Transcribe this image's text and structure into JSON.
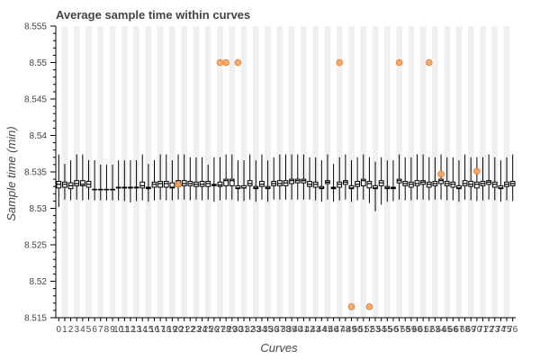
{
  "chart_data": {
    "type": "box",
    "title": "Average sample time within curves",
    "xlabel": "Curves",
    "ylabel": "Sample time (min)",
    "ylim": [
      8.515,
      8.555
    ],
    "yticks": [
      "8.515",
      "8.52",
      "8.525",
      "8.53",
      "8.535",
      "8.54",
      "8.545",
      "8.55",
      "8.555"
    ],
    "xtick_labels": [
      "0",
      "1",
      "2",
      "3",
      "4",
      "5",
      "6",
      "7",
      "8",
      "9",
      "10",
      "11",
      "12",
      "13",
      "14",
      "15",
      "16",
      "17",
      "18",
      "19",
      "20",
      "21",
      "22",
      "23",
      "24",
      "25",
      "26",
      "27",
      "28",
      "29",
      "30",
      "31",
      "32",
      "33",
      "34",
      "35",
      "36",
      "37",
      "38",
      "39",
      "40",
      "41",
      "42",
      "43",
      "44",
      "45",
      "46",
      "47",
      "48",
      "49",
      "50",
      "51",
      "52",
      "53",
      "54",
      "55",
      "56",
      "57",
      "58",
      "59",
      "60",
      "61",
      "62",
      "63",
      "64",
      "65",
      "66",
      "67",
      "68",
      "69",
      "70",
      "71",
      "72",
      "73",
      "74",
      "75",
      "76"
    ],
    "boxes": [
      {
        "curve": 0,
        "q1": 8.5328,
        "median": 8.5333,
        "q3": 8.5337,
        "low": 8.5302,
        "high": 8.5374
      },
      {
        "curve": 1,
        "q1": 8.5329,
        "median": 8.5333,
        "q3": 8.5336,
        "low": 8.5312,
        "high": 8.5361
      },
      {
        "curve": 2,
        "q1": 8.5327,
        "median": 8.5331,
        "q3": 8.5335,
        "low": 8.5311,
        "high": 8.5366
      },
      {
        "curve": 3,
        "q1": 8.5331,
        "median": 8.5334,
        "q3": 8.5338,
        "low": 8.5312,
        "high": 8.5374
      },
      {
        "curve": 4,
        "q1": 8.5331,
        "median": 8.5333,
        "q3": 8.5338,
        "low": 8.5311,
        "high": 8.5374
      },
      {
        "curve": 5,
        "q1": 8.5329,
        "median": 8.5333,
        "q3": 8.5337,
        "low": 8.5312,
        "high": 8.5366
      },
      {
        "curve": 6,
        "q1": 8.5326,
        "median": 8.5326,
        "q3": 8.5326,
        "low": 8.5311,
        "high": 8.5366
      },
      {
        "curve": 7,
        "q1": 8.5326,
        "median": 8.5326,
        "q3": 8.5326,
        "low": 8.5311,
        "high": 8.536
      },
      {
        "curve": 8,
        "q1": 8.5326,
        "median": 8.5326,
        "q3": 8.5326,
        "low": 8.5311,
        "high": 8.536
      },
      {
        "curve": 9,
        "q1": 8.5326,
        "median": 8.5326,
        "q3": 8.5326,
        "low": 8.5311,
        "high": 8.536
      },
      {
        "curve": 10,
        "q1": 8.5328,
        "median": 8.5328,
        "q3": 8.5329,
        "low": 8.5311,
        "high": 8.5366
      },
      {
        "curve": 11,
        "q1": 8.5328,
        "median": 8.5328,
        "q3": 8.5329,
        "low": 8.531,
        "high": 8.5366
      },
      {
        "curve": 12,
        "q1": 8.5328,
        "median": 8.5328,
        "q3": 8.5329,
        "low": 8.5308,
        "high": 8.5366
      },
      {
        "curve": 13,
        "q1": 8.5328,
        "median": 8.5329,
        "q3": 8.5329,
        "low": 8.531,
        "high": 8.5366
      },
      {
        "curve": 14,
        "q1": 8.5328,
        "median": 8.5331,
        "q3": 8.5336,
        "low": 8.5311,
        "high": 8.5374
      },
      {
        "curve": 15,
        "q1": 8.5327,
        "median": 8.5328,
        "q3": 8.5329,
        "low": 8.5309,
        "high": 8.5361
      },
      {
        "curve": 16,
        "q1": 8.5329,
        "median": 8.5333,
        "q3": 8.5336,
        "low": 8.5311,
        "high": 8.5366
      },
      {
        "curve": 17,
        "q1": 8.5329,
        "median": 8.5334,
        "q3": 8.5337,
        "low": 8.5312,
        "high": 8.5374
      },
      {
        "curve": 18,
        "q1": 8.5329,
        "median": 8.5334,
        "q3": 8.5337,
        "low": 8.5311,
        "high": 8.5374
      },
      {
        "curve": 19,
        "q1": 8.5328,
        "median": 8.5329,
        "q3": 8.5335,
        "low": 8.5311,
        "high": 8.5366
      },
      {
        "curve": 20,
        "q1": 8.533,
        "median": 8.5334,
        "q3": 8.5338,
        "low": 8.5312,
        "high": 8.5374
      },
      {
        "curve": 21,
        "q1": 8.5331,
        "median": 8.5334,
        "q3": 8.5338,
        "low": 8.5312,
        "high": 8.5374
      },
      {
        "curve": 22,
        "q1": 8.5331,
        "median": 8.5334,
        "q3": 8.5337,
        "low": 8.5311,
        "high": 8.537
      },
      {
        "curve": 23,
        "q1": 8.533,
        "median": 8.5333,
        "q3": 8.5336,
        "low": 8.5312,
        "high": 8.537
      },
      {
        "curve": 24,
        "q1": 8.533,
        "median": 8.5333,
        "q3": 8.5337,
        "low": 8.5311,
        "high": 8.537
      },
      {
        "curve": 25,
        "q1": 8.533,
        "median": 8.5334,
        "q3": 8.5337,
        "low": 8.5312,
        "high": 8.536
      },
      {
        "curve": 26,
        "q1": 8.5331,
        "median": 8.5332,
        "q3": 8.5333,
        "low": 8.5309,
        "high": 8.537
      },
      {
        "curve": 27,
        "q1": 8.533,
        "median": 8.5332,
        "q3": 8.5336,
        "low": 8.5311,
        "high": 8.537
      },
      {
        "curve": 28,
        "q1": 8.5331,
        "median": 8.5338,
        "q3": 8.534,
        "low": 8.5312,
        "high": 8.5374
      },
      {
        "curve": 29,
        "q1": 8.5331,
        "median": 8.5338,
        "q3": 8.534,
        "low": 8.5312,
        "high": 8.5374
      },
      {
        "curve": 30,
        "q1": 8.5327,
        "median": 8.5328,
        "q3": 8.5331,
        "low": 8.531,
        "high": 8.5366
      },
      {
        "curve": 31,
        "q1": 8.5328,
        "median": 8.5328,
        "q3": 8.5331,
        "low": 8.531,
        "high": 8.5366
      },
      {
        "curve": 32,
        "q1": 8.5331,
        "median": 8.5334,
        "q3": 8.5338,
        "low": 8.5312,
        "high": 8.5374
      },
      {
        "curve": 33,
        "q1": 8.5327,
        "median": 8.5328,
        "q3": 8.533,
        "low": 8.5309,
        "high": 8.5366
      },
      {
        "curve": 34,
        "q1": 8.533,
        "median": 8.5333,
        "q3": 8.5337,
        "low": 8.5312,
        "high": 8.5374
      },
      {
        "curve": 35,
        "q1": 8.5327,
        "median": 8.5328,
        "q3": 8.533,
        "low": 8.5309,
        "high": 8.5366
      },
      {
        "curve": 36,
        "q1": 8.5331,
        "median": 8.5334,
        "q3": 8.5337,
        "low": 8.5312,
        "high": 8.537
      },
      {
        "curve": 37,
        "q1": 8.5331,
        "median": 8.5334,
        "q3": 8.5338,
        "low": 8.5312,
        "high": 8.5374
      },
      {
        "curve": 38,
        "q1": 8.5331,
        "median": 8.5335,
        "q3": 8.5338,
        "low": 8.5312,
        "high": 8.5374
      },
      {
        "curve": 39,
        "q1": 8.5334,
        "median": 8.5338,
        "q3": 8.534,
        "low": 8.5312,
        "high": 8.5374
      },
      {
        "curve": 40,
        "q1": 8.5335,
        "median": 8.5338,
        "q3": 8.534,
        "low": 8.5312,
        "high": 8.5374
      },
      {
        "curve": 41,
        "q1": 8.5335,
        "median": 8.5338,
        "q3": 8.534,
        "low": 8.5312,
        "high": 8.5374
      },
      {
        "curve": 42,
        "q1": 8.533,
        "median": 8.5333,
        "q3": 8.5337,
        "low": 8.5312,
        "high": 8.537
      },
      {
        "curve": 43,
        "q1": 8.5329,
        "median": 8.5333,
        "q3": 8.5336,
        "low": 8.5311,
        "high": 8.537
      },
      {
        "curve": 44,
        "q1": 8.5327,
        "median": 8.5328,
        "q3": 8.533,
        "low": 8.5309,
        "high": 8.5366
      },
      {
        "curve": 45,
        "q1": 8.5334,
        "median": 8.5336,
        "q3": 8.5338,
        "low": 8.5312,
        "high": 8.5374
      },
      {
        "curve": 46,
        "q1": 8.5327,
        "median": 8.5328,
        "q3": 8.5329,
        "low": 8.5309,
        "high": 8.5361
      },
      {
        "curve": 47,
        "q1": 8.5329,
        "median": 8.5333,
        "q3": 8.5336,
        "low": 8.5311,
        "high": 8.537
      },
      {
        "curve": 48,
        "q1": 8.5333,
        "median": 8.5336,
        "q3": 8.5338,
        "low": 8.5312,
        "high": 8.5374
      },
      {
        "curve": 49,
        "q1": 8.5327,
        "median": 8.5328,
        "q3": 8.5331,
        "low": 8.5309,
        "high": 8.5366
      },
      {
        "curve": 50,
        "q1": 8.533,
        "median": 8.5333,
        "q3": 8.5337,
        "low": 8.5311,
        "high": 8.537
      },
      {
        "curve": 51,
        "q1": 8.5331,
        "median": 8.5338,
        "q3": 8.534,
        "low": 8.5312,
        "high": 8.5374
      },
      {
        "curve": 52,
        "q1": 8.5328,
        "median": 8.5334,
        "q3": 8.5337,
        "low": 8.5307,
        "high": 8.537
      },
      {
        "curve": 53,
        "q1": 8.5327,
        "median": 8.5328,
        "q3": 8.5331,
        "low": 8.5296,
        "high": 8.5364
      },
      {
        "curve": 54,
        "q1": 8.5331,
        "median": 8.5335,
        "q3": 8.5338,
        "low": 8.5305,
        "high": 8.537
      },
      {
        "curve": 55,
        "q1": 8.5327,
        "median": 8.5328,
        "q3": 8.533,
        "low": 8.5309,
        "high": 8.5366
      },
      {
        "curve": 56,
        "q1": 8.5327,
        "median": 8.5328,
        "q3": 8.5329,
        "low": 8.531,
        "high": 8.5366
      },
      {
        "curve": 57,
        "q1": 8.5335,
        "median": 8.5338,
        "q3": 8.534,
        "low": 8.5312,
        "high": 8.5374
      },
      {
        "curve": 58,
        "q1": 8.5331,
        "median": 8.5334,
        "q3": 8.5337,
        "low": 8.5311,
        "high": 8.537
      },
      {
        "curve": 59,
        "q1": 8.5329,
        "median": 8.5333,
        "q3": 8.5336,
        "low": 8.5311,
        "high": 8.537
      },
      {
        "curve": 60,
        "q1": 8.5331,
        "median": 8.5334,
        "q3": 8.5338,
        "low": 8.5312,
        "high": 8.5374
      },
      {
        "curve": 61,
        "q1": 8.5333,
        "median": 8.5336,
        "q3": 8.5338,
        "low": 8.5312,
        "high": 8.5374
      },
      {
        "curve": 62,
        "q1": 8.5329,
        "median": 8.5333,
        "q3": 8.5336,
        "low": 8.5311,
        "high": 8.537
      },
      {
        "curve": 63,
        "q1": 8.5331,
        "median": 8.5334,
        "q3": 8.5337,
        "low": 8.5312,
        "high": 8.537
      },
      {
        "curve": 64,
        "q1": 8.5334,
        "median": 8.5338,
        "q3": 8.534,
        "low": 8.5312,
        "high": 8.5374
      },
      {
        "curve": 65,
        "q1": 8.5331,
        "median": 8.5334,
        "q3": 8.5337,
        "low": 8.5311,
        "high": 8.537
      },
      {
        "curve": 66,
        "q1": 8.5329,
        "median": 8.5333,
        "q3": 8.5336,
        "low": 8.5311,
        "high": 8.537
      },
      {
        "curve": 67,
        "q1": 8.5327,
        "median": 8.5328,
        "q3": 8.5331,
        "low": 8.5309,
        "high": 8.5366
      },
      {
        "curve": 68,
        "q1": 8.5331,
        "median": 8.5334,
        "q3": 8.5338,
        "low": 8.5312,
        "high": 8.5374
      },
      {
        "curve": 69,
        "q1": 8.533,
        "median": 8.5333,
        "q3": 8.5337,
        "low": 8.5311,
        "high": 8.537
      },
      {
        "curve": 70,
        "q1": 8.5328,
        "median": 8.5333,
        "q3": 8.5336,
        "low": 8.531,
        "high": 8.537
      },
      {
        "curve": 71,
        "q1": 8.5331,
        "median": 8.5334,
        "q3": 8.5337,
        "low": 8.5311,
        "high": 8.537
      },
      {
        "curve": 72,
        "q1": 8.5333,
        "median": 8.5336,
        "q3": 8.5338,
        "low": 8.5312,
        "high": 8.5374
      },
      {
        "curve": 73,
        "q1": 8.5329,
        "median": 8.5333,
        "q3": 8.5336,
        "low": 8.5311,
        "high": 8.537
      },
      {
        "curve": 74,
        "q1": 8.5327,
        "median": 8.5328,
        "q3": 8.5331,
        "low": 8.5309,
        "high": 8.5366
      },
      {
        "curve": 75,
        "q1": 8.533,
        "median": 8.5333,
        "q3": 8.5336,
        "low": 8.5311,
        "high": 8.537
      },
      {
        "curve": 76,
        "q1": 8.5331,
        "median": 8.5334,
        "q3": 8.5337,
        "low": 8.531,
        "high": 8.5374
      }
    ],
    "outliers": [
      {
        "curve": 20,
        "y": 8.5333
      },
      {
        "curve": 27,
        "y": 8.55
      },
      {
        "curve": 28,
        "y": 8.55
      },
      {
        "curve": 30,
        "y": 8.55
      },
      {
        "curve": 47,
        "y": 8.55
      },
      {
        "curve": 49,
        "y": 8.5165
      },
      {
        "curve": 52,
        "y": 8.5165
      },
      {
        "curve": 57,
        "y": 8.55
      },
      {
        "curve": 62,
        "y": 8.55
      },
      {
        "curve": 64,
        "y": 8.5347
      },
      {
        "curve": 70,
        "y": 8.5351
      }
    ],
    "grid": "alternating vertical bands",
    "colors": {
      "box_fill": "#ffffff",
      "box_stroke": "#000000",
      "outlier": "#f4a460",
      "outlier_stroke": "#e8823a",
      "band": "#f0f0f0",
      "text": "#444444"
    }
  }
}
